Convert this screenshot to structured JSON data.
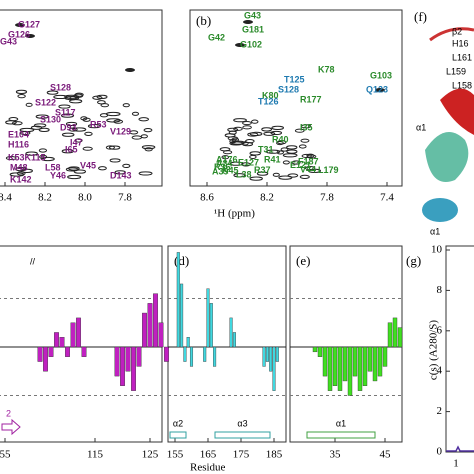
{
  "panel_a": {
    "xticks": [
      8.4,
      8.2,
      {
        "value": 8,
        "label": "8.0"
      },
      7.8
    ],
    "peaks": [
      "G127",
      "G126",
      "G43",
      "S128",
      "S122",
      "S117",
      "S130",
      "D93",
      "R53",
      "V129",
      "E104",
      "H116",
      "I47",
      "I65",
      "K53K115",
      "V45",
      "M48",
      "L58",
      "Y46",
      "K142",
      "D143"
    ]
  },
  "panel_b": {
    "label": "(b)",
    "xticks": [
      8.6,
      8.2,
      7.8,
      7.4
    ],
    "peaks_green": [
      "G43",
      "G181",
      "G42",
      "G102",
      "G103",
      "K78",
      "K80",
      "R177",
      "T31",
      "F187",
      "V44",
      "I35",
      "R40",
      "R41",
      "E127",
      "L38",
      "R37",
      "A39",
      "K45",
      "R36",
      "A34",
      "A176",
      "L179",
      "E121"
    ],
    "peaks_blue": [
      "T125",
      "S128",
      "T126",
      "Q123"
    ]
  },
  "x_axis_label": "¹H (ppm)",
  "panel_f": {
    "label": "(f)",
    "labels": [
      "β2",
      "H16",
      "L161",
      "L159",
      "L158",
      "α1",
      "α1"
    ]
  },
  "panel_c": {
    "residues": [
      54,
      55,
      56,
      57,
      105,
      106,
      107,
      108,
      109,
      110,
      111,
      112,
      113,
      119,
      120,
      121,
      122,
      123,
      124,
      125,
      126,
      127,
      128
    ],
    "values": [
      -0.3,
      -0.4,
      -0.2,
      -0.3,
      -0.3,
      -0.5,
      -0.2,
      0.3,
      0.2,
      -0.2,
      0.5,
      0.6,
      -0.2,
      -0.6,
      -0.8,
      -0.5,
      -0.9,
      -0.4,
      0.7,
      0.9,
      1.1,
      0.5,
      -0.3
    ],
    "xticks": [
      55,
      115,
      125
    ],
    "ss": "2"
  },
  "panel_d": {
    "label": "(d)",
    "residues": [
      156,
      157,
      158,
      159,
      160,
      164,
      165,
      166,
      167,
      172,
      173,
      182,
      183,
      184,
      185,
      186
    ],
    "values": [
      1.95,
      1.3,
      -0.3,
      0.2,
      -0.4,
      -0.3,
      1.2,
      0.9,
      -0.4,
      0.6,
      0.3,
      -0.4,
      -0.3,
      -0.5,
      -0.9,
      -0.3
    ],
    "xticks": [
      155,
      165,
      175,
      185
    ],
    "ss": [
      "α2",
      "α3"
    ]
  },
  "panel_e": {
    "label": "(e)",
    "residues": [
      31,
      32,
      33,
      34,
      35,
      36,
      37,
      38,
      39,
      40,
      41,
      42,
      43,
      44,
      45,
      46,
      47,
      48
    ],
    "values": [
      -0.1,
      -0.2,
      -0.6,
      -0.9,
      -0.8,
      -0.9,
      -0.7,
      -1.0,
      -0.6,
      -0.9,
      -0.8,
      -0.5,
      -0.7,
      -0.6,
      -0.4,
      0.5,
      0.6,
      0.4
    ],
    "xticks": [
      35,
      45
    ],
    "ss": [
      "α1"
    ]
  },
  "residue_label": "Residue",
  "panel_g": {
    "label": "(g)",
    "ylabel": "c(s) (A280/S)",
    "yticks": [
      0,
      2,
      4,
      6,
      8,
      10
    ],
    "ylim": [
      0,
      10
    ],
    "xticks": [
      1
    ]
  }
}
